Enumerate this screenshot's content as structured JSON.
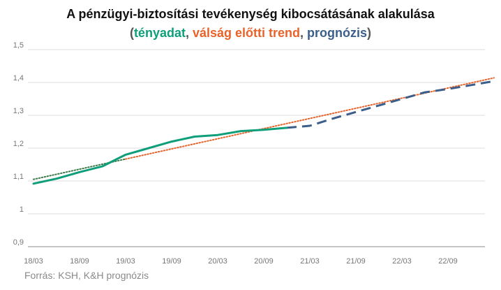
{
  "title": "A pénzügyi-biztosítási tevékenység kibocsátásának alakulása",
  "subtitle": {
    "open": "(",
    "actual": "tényadat",
    "sep1": ", ",
    "trend": "válság előtti trend",
    "sep2": ", ",
    "forecast": "prognózis",
    "close": ")"
  },
  "source": "Forrás: KSH, K&H prognózis",
  "colors": {
    "actual": "#0e9f7a",
    "trend": "#e8622a",
    "forecast": "#3b5f8a",
    "trend_early": "#3d7a4a",
    "grid": "#dddddd",
    "axis": "#888888"
  },
  "chart_data": {
    "type": "line",
    "title": "A pénzügyi-biztosítási tevékenység kibocsátásának alakulása",
    "x_ticks": [
      "18/03",
      "18/09",
      "19/03",
      "19/09",
      "20/03",
      "20/09",
      "21/03",
      "21/09",
      "22/03",
      "22/09"
    ],
    "y_ticks": [
      "0,9",
      "1",
      "1,1",
      "1,2",
      "1,3",
      "1,4",
      "1,5"
    ],
    "ylim": [
      0.9,
      1.5
    ],
    "grid": true,
    "series": [
      {
        "name": "tényadat",
        "style": "solid",
        "x": [
          "18/03",
          "18/06",
          "18/09",
          "18/12",
          "19/03",
          "19/06",
          "19/09",
          "19/12",
          "20/03",
          "20/06",
          "20/09",
          "20/12"
        ],
        "values": [
          1.092,
          1.107,
          1.127,
          1.145,
          1.18,
          1.2,
          1.22,
          1.235,
          1.24,
          1.252,
          1.256,
          1.262
        ]
      },
      {
        "name": "válság előtti trend",
        "style": "dotted",
        "x": [
          "18/03",
          "23/03"
        ],
        "values": [
          1.105,
          1.414
        ]
      },
      {
        "name": "prognózis",
        "style": "dashed",
        "x": [
          "20/12",
          "21/03",
          "21/06",
          "21/09",
          "21/12",
          "22/03",
          "22/06",
          "22/09",
          "22/12",
          "23/03"
        ],
        "values": [
          1.262,
          1.268,
          1.29,
          1.31,
          1.33,
          1.35,
          1.37,
          1.38,
          1.392,
          1.404
        ]
      }
    ]
  }
}
